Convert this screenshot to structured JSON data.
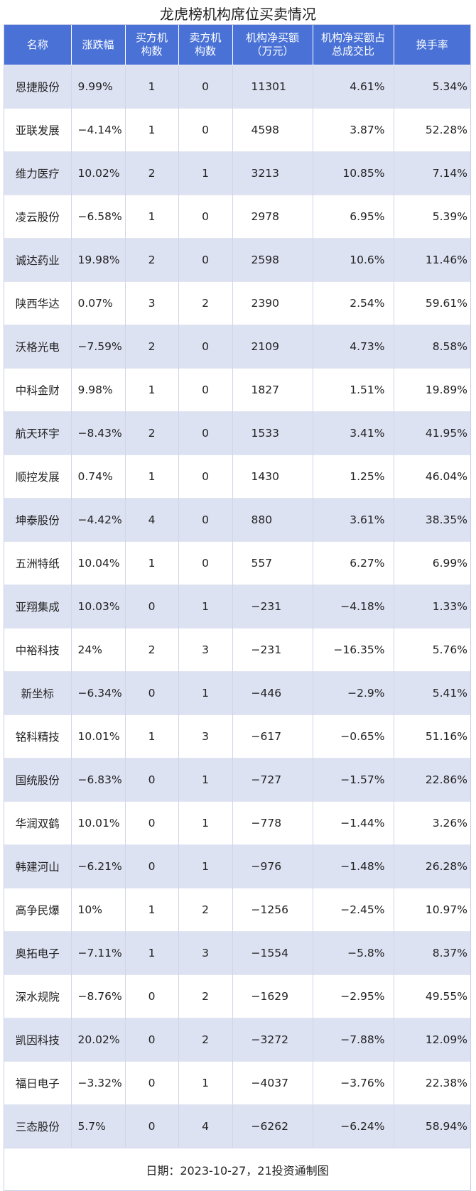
{
  "title": "龙虎榜机构席位买卖情况",
  "table": {
    "headers": [
      "名称",
      "涨跌幅",
      "买方机\n构数",
      "卖方机\n构数",
      "机构净买额\n（万元）",
      "机构净买额占\n总成交比",
      "换手率"
    ],
    "rows": [
      [
        "恩捷股份",
        "9.99%",
        "1",
        "0",
        "11301",
        "4.61%",
        "5.34%"
      ],
      [
        "亚联发展",
        "−4.14%",
        "1",
        "0",
        "4598",
        "3.87%",
        "52.28%"
      ],
      [
        "维力医疗",
        "10.02%",
        "2",
        "1",
        "3213",
        "10.85%",
        "7.14%"
      ],
      [
        "凌云股份",
        "−6.58%",
        "1",
        "0",
        "2978",
        "6.95%",
        "5.39%"
      ],
      [
        "诚达药业",
        "19.98%",
        "2",
        "0",
        "2598",
        "10.6%",
        "11.46%"
      ],
      [
        "陕西华达",
        "0.07%",
        "3",
        "2",
        "2390",
        "2.54%",
        "59.61%"
      ],
      [
        "沃格光电",
        "−7.59%",
        "2",
        "0",
        "2109",
        "4.73%",
        "8.58%"
      ],
      [
        "中科金财",
        "9.98%",
        "1",
        "0",
        "1827",
        "1.51%",
        "19.89%"
      ],
      [
        "航天环宇",
        "−8.43%",
        "2",
        "0",
        "1533",
        "3.41%",
        "41.95%"
      ],
      [
        "顺控发展",
        "0.74%",
        "1",
        "0",
        "1430",
        "1.25%",
        "46.04%"
      ],
      [
        "坤泰股份",
        "−4.42%",
        "4",
        "0",
        "880",
        "3.61%",
        "38.35%"
      ],
      [
        "五洲特纸",
        "10.04%",
        "1",
        "0",
        "557",
        "6.27%",
        "6.99%"
      ],
      [
        "亚翔集成",
        "10.03%",
        "0",
        "1",
        "−231",
        "−4.18%",
        "1.33%"
      ],
      [
        "中裕科技",
        "24%",
        "2",
        "3",
        "−231",
        "−16.35%",
        "5.76%"
      ],
      [
        "新坐标",
        "−6.34%",
        "0",
        "1",
        "−446",
        "−2.9%",
        "5.41%"
      ],
      [
        "铭科精技",
        "10.01%",
        "1",
        "3",
        "−617",
        "−0.65%",
        "51.16%"
      ],
      [
        "国统股份",
        "−6.83%",
        "0",
        "1",
        "−727",
        "−1.57%",
        "22.86%"
      ],
      [
        "华润双鹤",
        "10.01%",
        "0",
        "1",
        "−778",
        "−1.44%",
        "3.26%"
      ],
      [
        "韩建河山",
        "−6.21%",
        "0",
        "1",
        "−976",
        "−1.48%",
        "26.28%"
      ],
      [
        "高争民爆",
        "10%",
        "1",
        "2",
        "−1256",
        "−2.45%",
        "10.97%"
      ],
      [
        "奥拓电子",
        "−7.11%",
        "1",
        "3",
        "−1554",
        "−5.8%",
        "8.37%"
      ],
      [
        "深水规院",
        "−8.76%",
        "0",
        "2",
        "−1629",
        "−2.95%",
        "49.55%"
      ],
      [
        "凯因科技",
        "20.02%",
        "0",
        "2",
        "−3272",
        "−7.88%",
        "12.09%"
      ],
      [
        "福日电子",
        "−3.32%",
        "0",
        "1",
        "−4037",
        "−3.76%",
        "22.38%"
      ],
      [
        "三态股份",
        "5.7%",
        "0",
        "4",
        "−6262",
        "−6.24%",
        "58.94%"
      ]
    ]
  },
  "footer": "日期：2023-10-27，21投资通制图"
}
